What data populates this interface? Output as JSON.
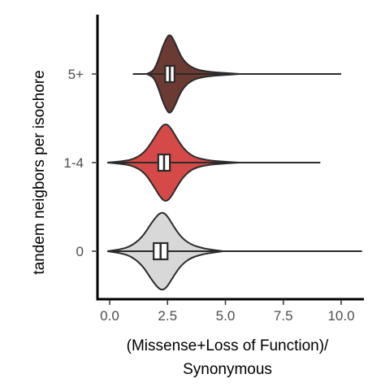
{
  "chart_data": {
    "type": "violin",
    "orientation": "horizontal",
    "xlabel": [
      "(Missense+Loss of Function)/",
      "Synonymous"
    ],
    "ylabel": "tandem neigbors per isochore",
    "xlim": [
      -0.5,
      11.5
    ],
    "xticks": [
      0.0,
      2.5,
      5.0,
      7.5,
      10.0
    ],
    "xtick_labels": [
      "0.0",
      "2.5",
      "5.0",
      "7.5",
      "10.0"
    ],
    "grid": false,
    "legend": "none",
    "categories": [
      {
        "label": "5+",
        "fill": "#6b3a33",
        "whisker": [
          1.0,
          10.0
        ],
        "box": [
          2.4,
          2.8,
          2.6
        ],
        "violin_extent": [
          1.6,
          5.6
        ],
        "density": [
          [
            1.6,
            0.0
          ],
          [
            1.9,
            0.08
          ],
          [
            2.1,
            0.35
          ],
          [
            2.3,
            0.72
          ],
          [
            2.5,
            0.97
          ],
          [
            2.6,
            1.0
          ],
          [
            2.7,
            0.95
          ],
          [
            2.9,
            0.7
          ],
          [
            3.1,
            0.42
          ],
          [
            3.4,
            0.22
          ],
          [
            3.8,
            0.1
          ],
          [
            4.4,
            0.05
          ],
          [
            5.0,
            0.025
          ],
          [
            5.6,
            0.0
          ]
        ]
      },
      {
        "label": "1-4",
        "fill": "#d54a48",
        "whisker": [
          -0.1,
          9.1
        ],
        "box": [
          2.1,
          2.6,
          2.35
        ],
        "violin_extent": [
          -0.1,
          5.6
        ],
        "density": [
          [
            -0.1,
            0.0
          ],
          [
            0.5,
            0.03
          ],
          [
            1.0,
            0.08
          ],
          [
            1.5,
            0.25
          ],
          [
            1.9,
            0.6
          ],
          [
            2.2,
            0.9
          ],
          [
            2.4,
            1.0
          ],
          [
            2.6,
            0.93
          ],
          [
            2.9,
            0.62
          ],
          [
            3.2,
            0.35
          ],
          [
            3.6,
            0.15
          ],
          [
            4.2,
            0.06
          ],
          [
            5.0,
            0.02
          ],
          [
            5.6,
            0.0
          ]
        ]
      },
      {
        "label": "0",
        "fill": "#d8d8d8",
        "whisker": [
          0.0,
          10.9
        ],
        "box": [
          1.9,
          2.5,
          2.2
        ],
        "violin_extent": [
          -0.1,
          4.9
        ],
        "density": [
          [
            -0.1,
            0.0
          ],
          [
            0.4,
            0.04
          ],
          [
            0.9,
            0.12
          ],
          [
            1.4,
            0.35
          ],
          [
            1.8,
            0.72
          ],
          [
            2.1,
            0.95
          ],
          [
            2.3,
            1.0
          ],
          [
            2.5,
            0.9
          ],
          [
            2.8,
            0.6
          ],
          [
            3.1,
            0.35
          ],
          [
            3.5,
            0.17
          ],
          [
            4.0,
            0.08
          ],
          [
            4.5,
            0.03
          ],
          [
            4.9,
            0.0
          ]
        ]
      }
    ]
  }
}
